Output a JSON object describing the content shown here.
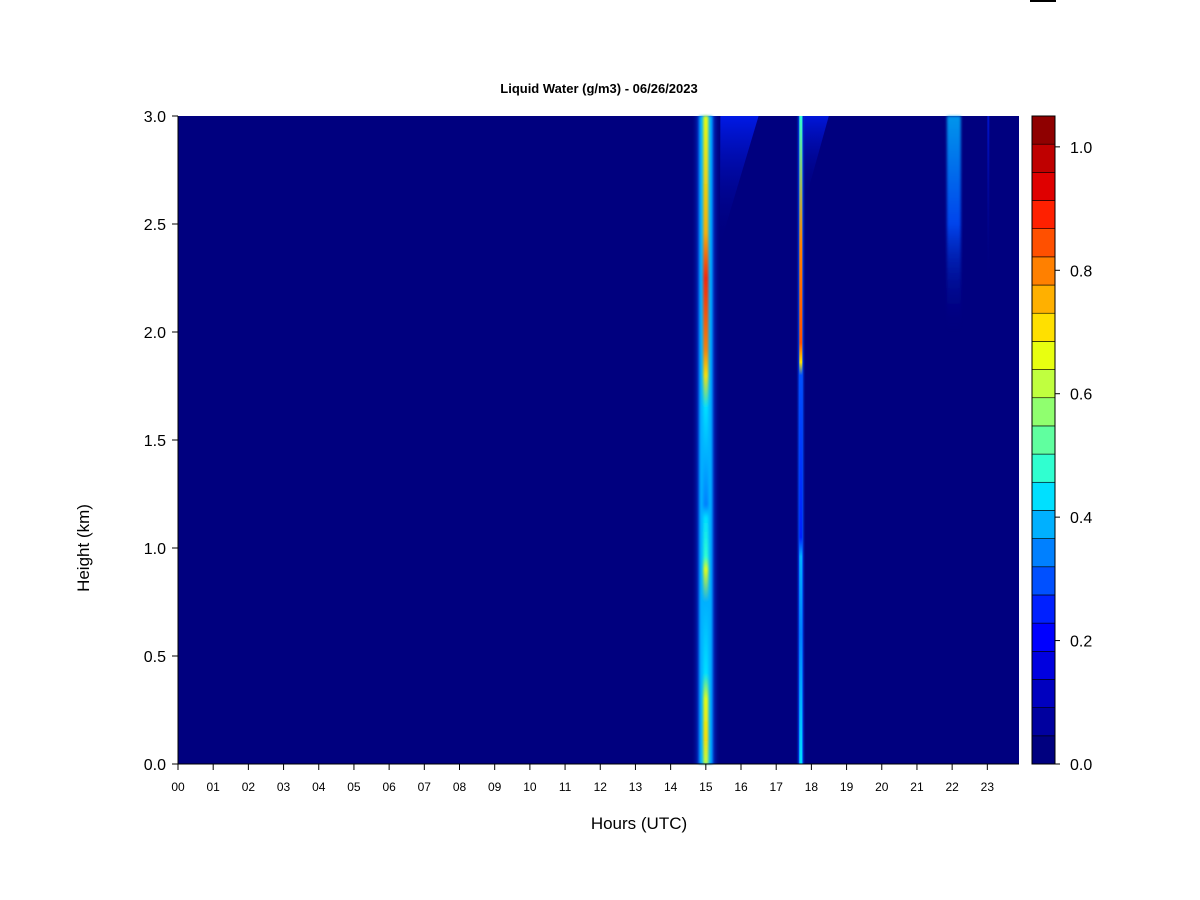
{
  "chart_data": {
    "type": "heatmap",
    "title": "Liquid Water (g/m3) - 06/26/2023",
    "xlabel": "Hours (UTC)",
    "ylabel": "Height (km)",
    "x_ticks": [
      "00",
      "01",
      "02",
      "03",
      "04",
      "05",
      "06",
      "07",
      "08",
      "09",
      "10",
      "11",
      "12",
      "13",
      "14",
      "15",
      "16",
      "17",
      "18",
      "19",
      "20",
      "21",
      "22",
      "23"
    ],
    "y_ticks": [
      "0.0",
      "0.5",
      "1.0",
      "1.5",
      "2.0",
      "2.5",
      "3.0"
    ],
    "xlim": [
      0,
      23.9
    ],
    "ylim": [
      0,
      3.0
    ],
    "colorbar": {
      "range": [
        0,
        1.05
      ],
      "levels": 17,
      "ticks": [
        "0.0",
        "0.2",
        "0.4",
        "0.6",
        "0.8",
        "1.0"
      ],
      "colors": [
        "#00007f",
        "#00009f",
        "#0000bf",
        "#0000df",
        "#0000ff",
        "#0020ff",
        "#0050ff",
        "#0080ff",
        "#00b0ff",
        "#00e0ff",
        "#30ffd0",
        "#60ff9f",
        "#90ff6f",
        "#c0ff3f",
        "#e8ff10",
        "#ffe000",
        "#ffb000",
        "#ff8000",
        "#ff5000",
        "#ff2000",
        "#df0000",
        "#bf0000",
        "#8f0000"
      ]
    },
    "background_value": 0.0,
    "features": [
      {
        "x_start": 14.7,
        "x_end": 15.3,
        "y_start": 0.0,
        "y_end": 3.0,
        "peak": 0.95,
        "peak_height": 2.3
      },
      {
        "x_start": 17.6,
        "x_end": 17.8,
        "y_start": 0.0,
        "y_end": 3.0,
        "peak": 0.9,
        "peak_height": 2.0
      },
      {
        "x_start": 21.9,
        "x_end": 22.2,
        "y_start": 2.0,
        "y_end": 3.0,
        "peak": 0.35,
        "peak_height": 2.9
      }
    ]
  }
}
